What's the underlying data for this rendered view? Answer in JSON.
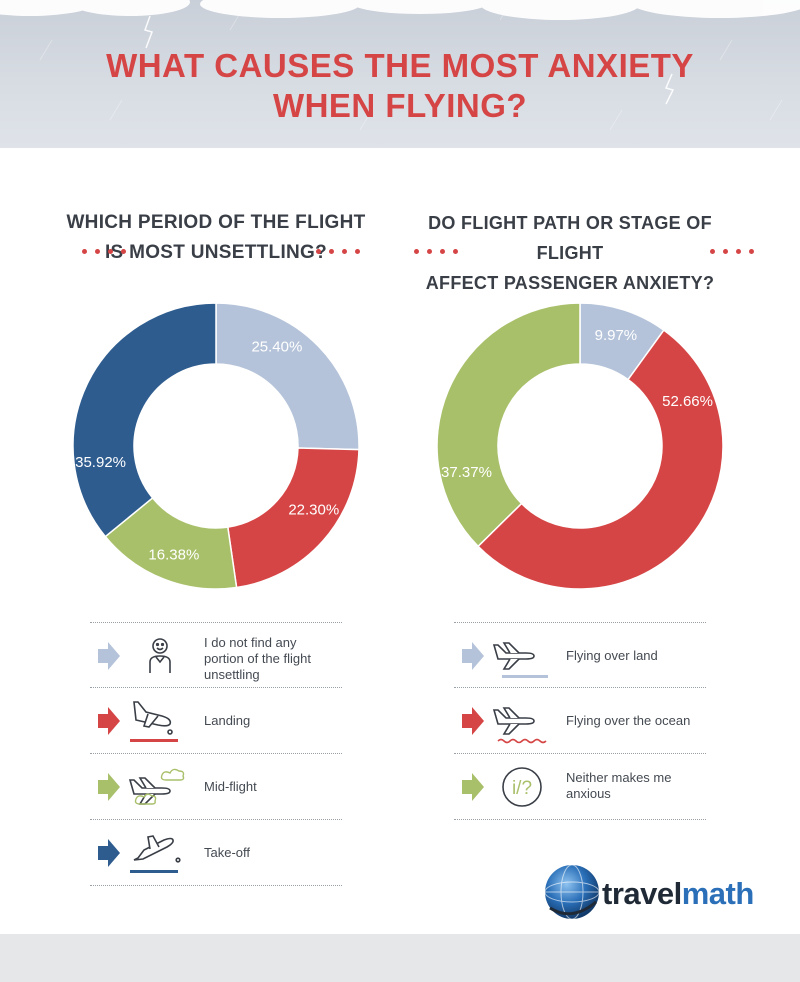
{
  "header": {
    "title_line1": "WHAT CAUSES THE MOST ANXIETY",
    "title_line2": "WHEN FLYING?"
  },
  "colors": {
    "title_red": "#d64545",
    "light_blue": "#b4c3d9",
    "red": "#d64545",
    "green": "#a9c06a",
    "dark_blue": "#2e5c8f"
  },
  "chart_data": [
    {
      "type": "pie",
      "title_line1": "WHICH PERIOD OF THE FLIGHT",
      "title_line2": "IS MOST UNSETTLING?",
      "donut": true,
      "categories": [
        "I do not find any portion of the flight unsettling",
        "Landing",
        "Mid-flight",
        "Take-off"
      ],
      "values": [
        25.4,
        22.3,
        16.38,
        35.92
      ],
      "value_labels": [
        "25.40%",
        "22.30%",
        "16.38%",
        "35.92%"
      ],
      "colors": [
        "#b4c3d9",
        "#d64545",
        "#a9c06a",
        "#2e5c8f"
      ],
      "legend_icons": [
        "smiley-person-icon",
        "landing-plane-icon",
        "midflight-plane-icon",
        "takeoff-plane-icon"
      ],
      "legend_position": "bottom"
    },
    {
      "type": "pie",
      "title_line1": "DO FLIGHT PATH OR STAGE OF FLIGHT",
      "title_line2": "AFFECT PASSENGER ANXIETY?",
      "donut": true,
      "categories": [
        "Flying over land",
        "Flying over the ocean",
        "Neither makes me anxious"
      ],
      "values": [
        9.97,
        52.66,
        37.37
      ],
      "value_labels": [
        "9.97%",
        "52.66%",
        "37.37%"
      ],
      "colors": [
        "#b4c3d9",
        "#d64545",
        "#a9c06a"
      ],
      "legend_icons": [
        "plane-over-land-icon",
        "plane-over-ocean-icon",
        "question-mark-icon"
      ],
      "legend_position": "bottom"
    }
  ],
  "legend_left": [
    {
      "line1": "I do not find any",
      "line2": "portion of the flight",
      "line3": "unsettling"
    },
    {
      "line1": "Landing"
    },
    {
      "line1": "Mid-flight"
    },
    {
      "line1": "Take-off"
    }
  ],
  "legend_right": [
    {
      "line1": "Flying over land"
    },
    {
      "line1": "Flying over the ocean"
    },
    {
      "line1": "Neither makes me",
      "line2": "anxious"
    }
  ],
  "icon_glyphs": {
    "neither": "i/?"
  },
  "brand": {
    "part1": "travel",
    "part2": "math",
    "icon": "globe-logo-icon"
  }
}
